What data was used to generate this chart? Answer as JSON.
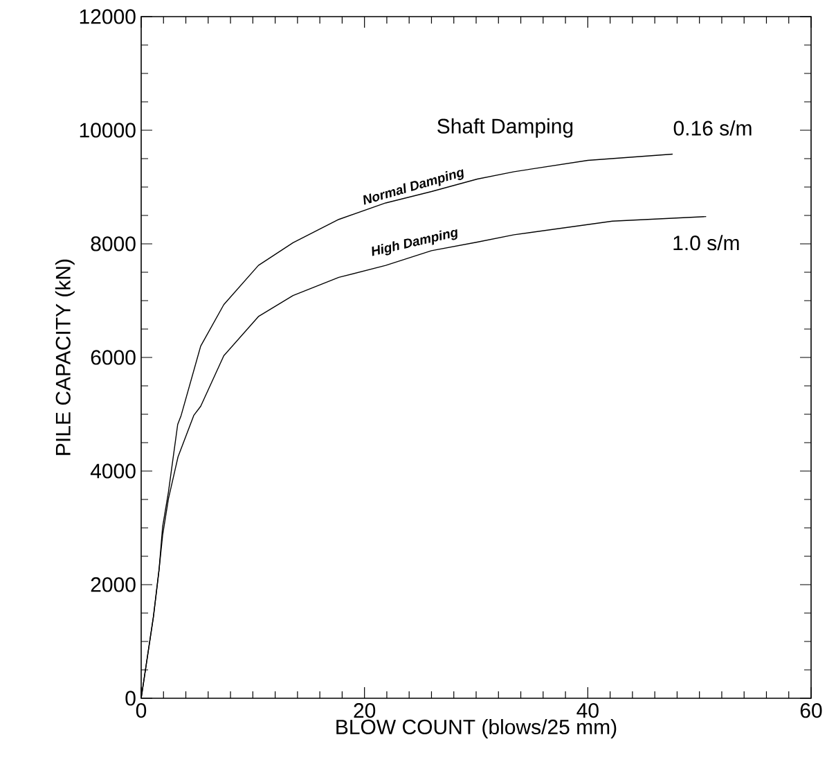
{
  "chart_data": {
    "type": "line",
    "xlabel": "BLOW COUNT (blows/25 mm)",
    "ylabel": "PILE CAPACITY (kN)",
    "xlim": [
      0,
      60
    ],
    "ylim": [
      0,
      12000
    ],
    "xticks": [
      0,
      20,
      40,
      60
    ],
    "yticks": [
      0,
      2000,
      4000,
      6000,
      8000,
      10000,
      12000
    ],
    "series": [
      {
        "name": "Normal Damping",
        "color": "#000000",
        "x": [
          0,
          1.1,
          1.6,
          1.92,
          2.44,
          3.27,
          3.58,
          5.33,
          7.4,
          10.5,
          13.6,
          17.7,
          21.9,
          26,
          30.1,
          33.4,
          40,
          47.6
        ],
        "values": [
          0,
          1440,
          2260,
          3020,
          3630,
          4820,
          4980,
          6200,
          6930,
          7620,
          8020,
          8430,
          8720,
          8920,
          9140,
          9270,
          9470,
          9580
        ]
      },
      {
        "name": "High Damping",
        "color": "#000000",
        "x": [
          0,
          1.1,
          1.6,
          1.92,
          2.44,
          3.3,
          4.71,
          5.33,
          7.4,
          10.5,
          13.6,
          17.7,
          21.9,
          26,
          30.1,
          33.4,
          42.2,
          50.6
        ],
        "values": [
          0,
          1440,
          2260,
          2870,
          3510,
          4250,
          4980,
          5140,
          6030,
          6720,
          7090,
          7410,
          7620,
          7880,
          8030,
          8160,
          8400,
          8480
        ]
      }
    ],
    "annotations": [
      "Shaft Damping",
      "0.16 s/m",
      "1.0 s/m"
    ]
  }
}
